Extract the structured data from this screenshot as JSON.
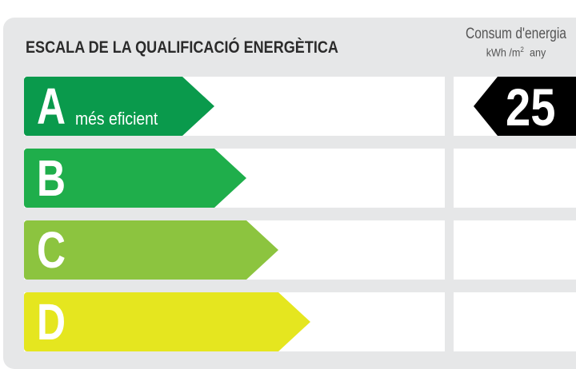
{
  "header": {
    "title": "ESCALA DE LA QUALIFICACIÓ ENERGÈTICA",
    "consumption_label": "Consum d'energia",
    "unit_prefix": "kWh /m",
    "unit_power": "2",
    "unit_suffix": "any"
  },
  "ratings": [
    {
      "letter": "A",
      "note": "més eficient",
      "color": "#0a9a4c"
    },
    {
      "letter": "B",
      "color": "#1fae4b"
    },
    {
      "letter": "C",
      "color": "#8cc43f"
    },
    {
      "letter": "D",
      "color": "#e5e61f"
    }
  ],
  "current": {
    "value": "25",
    "rating": "A"
  }
}
